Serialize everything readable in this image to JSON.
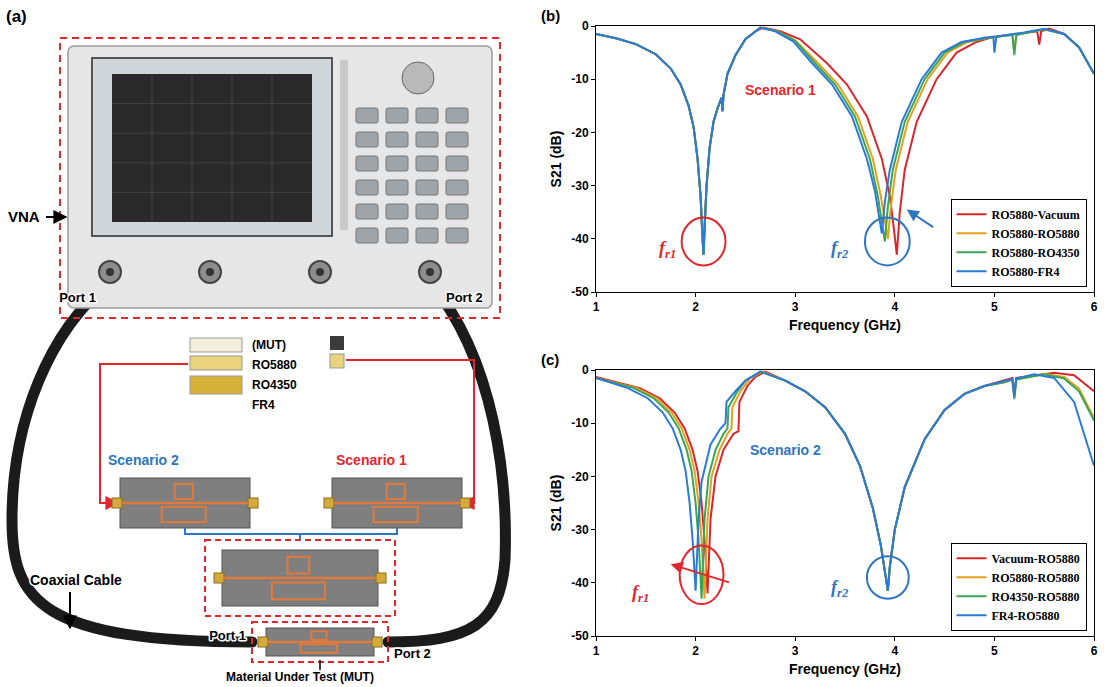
{
  "panel_a": {
    "letter": "(a)",
    "instrument": "VNA",
    "port_1": "Port 1",
    "port_2": "Port 2",
    "mut_heading": "(MUT)",
    "materials": [
      "RO5880",
      "RO4350",
      "FR4"
    ],
    "scenario_1": "Scenario 1",
    "scenario_2": "Scenario 2",
    "cable": "Coaxial Cable",
    "mut_label": "Material Under Test (MUT)"
  },
  "chart_data": [
    {
      "letter": "(b)",
      "type": "line",
      "x_label": "Frequency (GHz)",
      "y_label": "S21 (dB)",
      "xlim": [
        1,
        6
      ],
      "ylim": [
        -50,
        0
      ],
      "xticks": [
        1,
        2,
        3,
        4,
        5,
        6
      ],
      "yticks": [
        -50,
        -40,
        -30,
        -20,
        -10,
        0
      ],
      "grid": false,
      "legend": "lower right",
      "annotations": [
        {
          "text": "Scenario 1",
          "color": "#e3262c"
        },
        {
          "text": "f",
          "subscript": "r1",
          "color": "#e3262c"
        },
        {
          "text": "f",
          "subscript": "r2",
          "color": "#2f74c0"
        }
      ],
      "series": [
        {
          "name": "RO5880-Vacuum",
          "color": "#d9262b",
          "x": [
            1.0,
            1.2,
            1.4,
            1.6,
            1.75,
            1.85,
            1.93,
            1.98,
            2.02,
            2.05,
            2.07,
            2.08,
            2.09,
            2.11,
            2.14,
            2.18,
            2.22,
            2.26,
            2.27,
            2.28,
            2.32,
            2.4,
            2.5,
            2.6,
            2.68,
            2.85,
            3.05,
            3.32,
            3.52,
            3.72,
            3.87,
            3.95,
            3.99,
            4.02,
            4.05,
            4.1,
            4.22,
            4.42,
            4.62,
            4.82,
            5.0,
            5.3,
            5.43,
            5.45,
            5.47,
            5.55,
            5.7,
            5.85,
            6.0
          ],
          "values": [
            -1.5,
            -2.3,
            -3.4,
            -5.3,
            -8,
            -11,
            -15,
            -19,
            -25,
            -32,
            -40,
            -43,
            -38,
            -30,
            -23,
            -18,
            -15.5,
            -13.5,
            -16,
            -13,
            -9,
            -5.5,
            -2.5,
            -1,
            -0.3,
            -1,
            -2.5,
            -7,
            -11,
            -17,
            -25,
            -32,
            -38,
            -43,
            -35,
            -27,
            -18,
            -10,
            -5,
            -3,
            -2,
            -1.3,
            -1,
            -3.5,
            -1,
            -0.5,
            -1.5,
            -4,
            -9
          ]
        },
        {
          "name": "RO5880-RO5880",
          "color": "#e6a020",
          "x": [
            1.0,
            1.2,
            1.4,
            1.6,
            1.75,
            1.85,
            1.93,
            1.98,
            2.02,
            2.05,
            2.07,
            2.08,
            2.09,
            2.11,
            2.14,
            2.18,
            2.22,
            2.26,
            2.27,
            2.28,
            2.32,
            2.4,
            2.5,
            2.6,
            2.65,
            2.82,
            3.0,
            3.23,
            3.43,
            3.63,
            3.78,
            3.86,
            3.9,
            3.93,
            3.96,
            4.01,
            4.13,
            4.33,
            4.53,
            4.73,
            4.95,
            5.18,
            5.2,
            5.22,
            5.5,
            5.7,
            5.85,
            6.0
          ],
          "values": [
            -1.5,
            -2.3,
            -3.4,
            -5.3,
            -8,
            -11,
            -15,
            -19,
            -25,
            -32,
            -40,
            -43,
            -38,
            -30,
            -23,
            -18,
            -15.5,
            -13.5,
            -16,
            -13,
            -9,
            -5.5,
            -2.5,
            -1,
            -0.3,
            -1,
            -2.7,
            -7,
            -11,
            -17,
            -25,
            -32,
            -37,
            -40,
            -34,
            -27,
            -18,
            -10,
            -5,
            -3,
            -2.2,
            -1.6,
            -4.5,
            -1.6,
            -0.6,
            -1.5,
            -4,
            -9
          ]
        },
        {
          "name": "RO5880-RO4350",
          "color": "#3aa655",
          "x": [
            1.0,
            1.2,
            1.4,
            1.6,
            1.75,
            1.85,
            1.93,
            1.98,
            2.02,
            2.05,
            2.07,
            2.08,
            2.09,
            2.11,
            2.14,
            2.18,
            2.22,
            2.26,
            2.27,
            2.28,
            2.32,
            2.4,
            2.5,
            2.6,
            2.65,
            2.82,
            3.0,
            3.2,
            3.4,
            3.6,
            3.75,
            3.83,
            3.87,
            3.9,
            3.93,
            3.98,
            4.1,
            4.3,
            4.5,
            4.7,
            4.95,
            5.18,
            5.2,
            5.22,
            5.5,
            5.7,
            5.85,
            6.0
          ],
          "values": [
            -1.5,
            -2.3,
            -3.4,
            -5.3,
            -8,
            -11,
            -15,
            -19,
            -25,
            -32,
            -40,
            -43,
            -38,
            -30,
            -23,
            -18,
            -15.5,
            -13.5,
            -16,
            -13,
            -9,
            -5.5,
            -2.5,
            -1,
            -0.3,
            -1,
            -2.8,
            -7,
            -11,
            -17,
            -25,
            -32,
            -37,
            -40.5,
            -34,
            -27,
            -18,
            -10,
            -5,
            -3,
            -2.2,
            -1.7,
            -5.5,
            -1.7,
            -0.6,
            -1.5,
            -4,
            -9
          ]
        },
        {
          "name": "RO5880-FR4",
          "color": "#2b7bd6",
          "x": [
            1.0,
            1.2,
            1.4,
            1.6,
            1.75,
            1.85,
            1.93,
            1.98,
            2.02,
            2.05,
            2.07,
            2.08,
            2.09,
            2.11,
            2.14,
            2.18,
            2.22,
            2.26,
            2.27,
            2.28,
            2.32,
            2.4,
            2.5,
            2.6,
            2.65,
            2.8,
            2.98,
            3.17,
            3.37,
            3.57,
            3.72,
            3.8,
            3.84,
            3.87,
            3.9,
            3.95,
            4.07,
            4.27,
            4.47,
            4.67,
            4.9,
            4.99,
            5.0,
            5.02,
            5.3,
            5.5,
            5.7,
            5.85,
            6.0
          ],
          "values": [
            -1.5,
            -2.3,
            -3.4,
            -5.3,
            -8,
            -11,
            -15,
            -19,
            -25,
            -32,
            -40,
            -43,
            -38,
            -30,
            -23,
            -18,
            -15.5,
            -13.5,
            -16,
            -13,
            -9,
            -5.5,
            -2.5,
            -1,
            -0.3,
            -1,
            -2.9,
            -7,
            -11,
            -17,
            -25,
            -31,
            -36,
            -39,
            -33,
            -27,
            -18,
            -10,
            -5,
            -3,
            -2.2,
            -2,
            -5,
            -2,
            -1.2,
            -0.5,
            -1.5,
            -4,
            -9
          ]
        }
      ]
    },
    {
      "letter": "(c)",
      "type": "line",
      "x_label": "Frequency (GHz)",
      "y_label": "S21 (dB)",
      "xlim": [
        1,
        6
      ],
      "ylim": [
        -50,
        0
      ],
      "xticks": [
        1,
        2,
        3,
        4,
        5,
        6
      ],
      "yticks": [
        -50,
        -40,
        -30,
        -20,
        -10,
        0
      ],
      "grid": false,
      "legend": "lower right",
      "annotations": [
        {
          "text": "Scenario 2",
          "color": "#2f74c0"
        },
        {
          "text": "f",
          "subscript": "r1",
          "color": "#e3262c"
        },
        {
          "text": "f",
          "subscript": "r2",
          "color": "#2f74c0"
        }
      ],
      "series": [
        {
          "name": "Vacuum-RO5880",
          "color": "#d9262b",
          "x": [
            1.0,
            1.44,
            1.64,
            1.79,
            1.89,
            1.97,
            2.02,
            2.06,
            2.09,
            2.11,
            2.12,
            2.15,
            2.2,
            2.28,
            2.38,
            2.43,
            2.44,
            2.52,
            2.6,
            2.7,
            2.9,
            3.1,
            3.3,
            3.5,
            3.65,
            3.78,
            3.86,
            3.91,
            3.93,
            3.95,
            4.0,
            4.1,
            4.3,
            4.5,
            4.7,
            4.9,
            5.1,
            5.18,
            5.2,
            5.22,
            5.6,
            5.8,
            6.0
          ],
          "values": [
            -1.3,
            -3.4,
            -5.3,
            -8,
            -11,
            -15,
            -19,
            -25,
            -32,
            -39,
            -42,
            -28,
            -20,
            -15,
            -12,
            -11.5,
            -6,
            -3,
            -1.3,
            -0.3,
            -2,
            -4,
            -7,
            -12,
            -18,
            -26,
            -33,
            -39,
            -41.5,
            -37,
            -30,
            -22,
            -13,
            -7.5,
            -4.5,
            -3,
            -2,
            -1.5,
            -4,
            -1.5,
            -0.5,
            -1,
            -4
          ]
        },
        {
          "name": "RO5880-RO5880",
          "color": "#e6a020",
          "x": [
            1.0,
            1.41,
            1.61,
            1.76,
            1.86,
            1.94,
            1.99,
            2.03,
            2.06,
            2.08,
            2.09,
            2.12,
            2.16,
            2.24,
            2.32,
            2.36,
            2.37,
            2.45,
            2.55,
            2.67,
            2.9,
            3.1,
            3.3,
            3.5,
            3.65,
            3.78,
            3.86,
            3.91,
            3.93,
            3.95,
            4.0,
            4.1,
            4.3,
            4.5,
            4.7,
            4.9,
            5.1,
            5.18,
            5.2,
            5.22,
            5.5,
            5.7,
            5.85,
            6.0
          ],
          "values": [
            -1.5,
            -3.4,
            -5.3,
            -8,
            -11,
            -15,
            -19,
            -25,
            -32,
            -39,
            -43,
            -28,
            -20,
            -15,
            -12,
            -11,
            -7,
            -4,
            -1.5,
            -0.3,
            -2,
            -4,
            -7,
            -12,
            -18,
            -26,
            -33,
            -39,
            -41.5,
            -37,
            -30,
            -22,
            -13,
            -7.5,
            -4.5,
            -3,
            -2.3,
            -1.8,
            -5,
            -1.8,
            -0.7,
            -1.3,
            -3.5,
            -9
          ]
        },
        {
          "name": "RO4350-RO5880",
          "color": "#3aa655",
          "x": [
            1.0,
            1.38,
            1.58,
            1.73,
            1.83,
            1.91,
            1.96,
            2.0,
            2.03,
            2.05,
            2.06,
            2.09,
            2.13,
            2.2,
            2.28,
            2.32,
            2.33,
            2.42,
            2.5,
            2.65,
            2.9,
            3.1,
            3.3,
            3.5,
            3.65,
            3.78,
            3.86,
            3.91,
            3.93,
            3.95,
            4.0,
            4.1,
            4.3,
            4.5,
            4.7,
            4.9,
            5.1,
            5.18,
            5.2,
            5.22,
            5.5,
            5.7,
            5.85,
            6.0
          ],
          "values": [
            -1.5,
            -3.4,
            -5.3,
            -8,
            -11,
            -15,
            -19,
            -25,
            -32,
            -39,
            -43,
            -28,
            -20,
            -15,
            -12,
            -11,
            -7,
            -4,
            -2,
            -0.3,
            -2,
            -4,
            -7,
            -12,
            -18,
            -26,
            -33,
            -39,
            -41.5,
            -37,
            -30,
            -22,
            -13,
            -7.5,
            -4.5,
            -3,
            -2.3,
            -1.8,
            -5.5,
            -1.8,
            -0.8,
            -1.6,
            -4,
            -9.5
          ]
        },
        {
          "name": "FR4-RO5880",
          "color": "#2b7bd6",
          "x": [
            1.0,
            1.32,
            1.52,
            1.67,
            1.77,
            1.85,
            1.9,
            1.94,
            1.97,
            1.99,
            2.0,
            2.03,
            2.06,
            2.15,
            2.25,
            2.3,
            2.31,
            2.4,
            2.5,
            2.65,
            2.9,
            3.1,
            3.3,
            3.5,
            3.65,
            3.78,
            3.86,
            3.91,
            3.93,
            3.95,
            4.0,
            4.1,
            4.3,
            4.5,
            4.7,
            4.9,
            5.1,
            5.18,
            5.2,
            5.22,
            5.4,
            5.6,
            5.8,
            6.0
          ],
          "values": [
            -1.5,
            -3.4,
            -5.3,
            -8,
            -11,
            -15,
            -19,
            -25,
            -32,
            -38,
            -41.5,
            -28,
            -21,
            -14,
            -11,
            -10,
            -6,
            -4,
            -2,
            -0.3,
            -2,
            -4,
            -7,
            -12,
            -18,
            -26,
            -33,
            -39,
            -41.5,
            -37,
            -30,
            -22,
            -13,
            -7.5,
            -4.5,
            -3,
            -2,
            -1.7,
            -5,
            -1.6,
            -0.8,
            -1.5,
            -6,
            -18
          ]
        }
      ]
    }
  ]
}
